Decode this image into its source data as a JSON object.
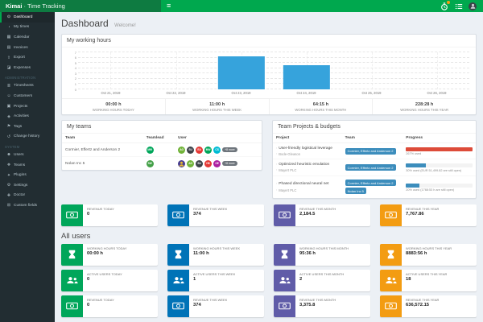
{
  "navbar": {
    "brand_bold": "Kimai",
    "brand_rest": "· Time Tracking",
    "right_icons": [
      "timer-icon",
      "tasks-icon",
      "user-avatar"
    ]
  },
  "sidebar": {
    "sections": [
      {
        "label": "",
        "items": [
          {
            "label": "Dashboard",
            "icon": "dashboard-icon",
            "active": true
          },
          {
            "label": "My times",
            "icon": "clock-icon"
          },
          {
            "label": "Calendar",
            "icon": "calendar-icon"
          },
          {
            "label": "Invoices",
            "icon": "invoice-icon"
          },
          {
            "label": "Export",
            "icon": "export-icon"
          },
          {
            "label": "Expenses",
            "icon": "expenses-icon"
          }
        ]
      },
      {
        "label": "Administration",
        "items": [
          {
            "label": "Timesheets",
            "icon": "timesheet-icon"
          },
          {
            "label": "Customers",
            "icon": "customers-icon"
          },
          {
            "label": "Projects",
            "icon": "projects-icon"
          },
          {
            "label": "Activities",
            "icon": "activities-icon"
          },
          {
            "label": "Tags",
            "icon": "tags-icon"
          },
          {
            "label": "Change history",
            "icon": "history-icon"
          }
        ]
      },
      {
        "label": "System",
        "items": [
          {
            "label": "Users",
            "icon": "users-icon"
          },
          {
            "label": "Teams",
            "icon": "teams-icon"
          },
          {
            "label": "Plugins",
            "icon": "plugins-icon"
          },
          {
            "label": "Settings",
            "icon": "gear-icon"
          },
          {
            "label": "Doctor",
            "icon": "doctor-icon"
          },
          {
            "label": "Custom fields",
            "icon": "custom-fields-icon"
          }
        ]
      }
    ]
  },
  "header": {
    "title": "Dashboard",
    "subtitle": "Welcome!"
  },
  "chart_data": {
    "type": "bar",
    "title": "My working hours",
    "categories": [
      "Oct 21, 2019",
      "Oct 22, 2019",
      "Oct 23, 2019",
      "Oct 24, 2019",
      "Oct 25, 2019",
      "Oct 26, 2019"
    ],
    "values": [
      0,
      0,
      6.25,
      4.5,
      0,
      0
    ],
    "xlabel": "",
    "ylabel": "",
    "ylim": [
      0,
      7
    ],
    "yticks": [
      0,
      1,
      2,
      3,
      4,
      5,
      6,
      7
    ],
    "bar_color": "#36a3dc",
    "grid": true,
    "legend": false
  },
  "working_hours_panel": {
    "title": "My working hours",
    "stats": [
      {
        "value": "00:00 h",
        "label": "WORKING HOURS TODAY"
      },
      {
        "value": "11:00 h",
        "label": "WORKING HOURS THIS WEEK"
      },
      {
        "value": "64:15 h",
        "label": "WORKING HOURS THIS MONTH"
      },
      {
        "value": "228:28 h",
        "label": "WORKING HOURS THIS YEAR"
      }
    ]
  },
  "teams_panel": {
    "title": "My teams",
    "columns": [
      "Team",
      "Teamlead",
      "User"
    ],
    "rows": [
      {
        "team": "Cormier, Effertz and Anderson 2",
        "teamlead": {
          "initials": "MW",
          "color": "#00a65a"
        },
        "users": [
          {
            "initials": "AG",
            "color": "#71b339"
          },
          {
            "initials": "SU",
            "color": "#3b4148"
          },
          {
            "initials": "EA",
            "color": "#e53935"
          },
          {
            "initials": "MW",
            "color": "#00a65a"
          },
          {
            "initials": "CS",
            "color": "#00bcd4"
          }
        ],
        "more": "+8 more"
      },
      {
        "team": "Nolan Inc 5",
        "teamlead": {
          "initials": "SW",
          "color": "#43a047"
        },
        "users": [
          {
            "initials": "",
            "color": "#4a3f8f",
            "image": true
          },
          {
            "initials": "AG",
            "color": "#71b339"
          },
          {
            "initials": "SU",
            "color": "#3b4148"
          },
          {
            "initials": "HK",
            "color": "#e53935"
          },
          {
            "initials": "OE",
            "color": "#ad1fa0"
          }
        ],
        "more": "+8 more"
      }
    ]
  },
  "projects_panel": {
    "title": "Team Projects & budgets",
    "columns": [
      "Project",
      "Team",
      "Progress"
    ],
    "rows": [
      {
        "project": "User-friendly logistical leverage",
        "customer": "Bode-Gleason",
        "teams": [
          "Cormier, Effertz and Anderson 2"
        ],
        "progress_pct": 100,
        "bar_color": "#dd4b39",
        "progress_text": "267% used"
      },
      {
        "project": "Optimized heuristic emulation",
        "customer": "Mayert PLC",
        "teams": [
          "Cormier, Effertz and Anderson 2"
        ],
        "progress_pct": 30,
        "bar_color": "#3c8dbc",
        "progress_text": "30% used (EUR 51,499.82 are still open)"
      },
      {
        "project": "Phased directional neural net",
        "customer": "Mayert PLC",
        "teams": [
          "Cormier, Effertz and Anderson 2",
          "Nolan Inc 5"
        ],
        "progress_pct": 20,
        "bar_color": "#3c8dbc",
        "progress_text": "20% used (1768:53 h are still open)"
      }
    ]
  },
  "my_revenue": {
    "icon": "money-icon",
    "boxes": [
      {
        "label": "REVENUE TODAY",
        "value": "0",
        "color": "#00a65a"
      },
      {
        "label": "REVENUE THIS WEEK",
        "value": "374",
        "color": "#0073b7"
      },
      {
        "label": "REVENUE THIS MONTH",
        "value": "2,184.5",
        "color": "#605ca8"
      },
      {
        "label": "REVENUE THIS YEAR",
        "value": "7,767.86",
        "color": "#f39c12"
      }
    ]
  },
  "all_users": {
    "title": "All users",
    "rows": [
      {
        "icon": "hourglass-icon",
        "boxes": [
          {
            "label": "WORKING HOURS TODAY",
            "value": "00:00 h",
            "color": "#00a65a"
          },
          {
            "label": "WORKING HOURS THIS WEEK",
            "value": "11:00 h",
            "color": "#0073b7"
          },
          {
            "label": "WORKING HOURS THIS MONTH",
            "value": "95:36 h",
            "color": "#605ca8"
          },
          {
            "label": "WORKING HOURS THIS YEAR",
            "value": "8883:56 h",
            "color": "#f39c12"
          }
        ]
      },
      {
        "icon": "users-icon",
        "boxes": [
          {
            "label": "ACTIVE USERS TODAY",
            "value": "0",
            "color": "#00a65a"
          },
          {
            "label": "ACTIVE USERS THIS WEEK",
            "value": "1",
            "color": "#0073b7"
          },
          {
            "label": "ACTIVE USERS THIS MONTH",
            "value": "2",
            "color": "#605ca8"
          },
          {
            "label": "ACTIVE USERS THIS YEAR",
            "value": "18",
            "color": "#f39c12"
          }
        ]
      },
      {
        "icon": "money-icon",
        "boxes": [
          {
            "label": "REVENUE TODAY",
            "value": "0",
            "color": "#00a65a"
          },
          {
            "label": "REVENUE THIS WEEK",
            "value": "374",
            "color": "#0073b7"
          },
          {
            "label": "REVENUE THIS MONTH",
            "value": "3,375.8",
            "color": "#605ca8"
          },
          {
            "label": "REVENUE THIS YEAR",
            "value": "636,572.15",
            "color": "#f39c12"
          }
        ]
      }
    ]
  }
}
